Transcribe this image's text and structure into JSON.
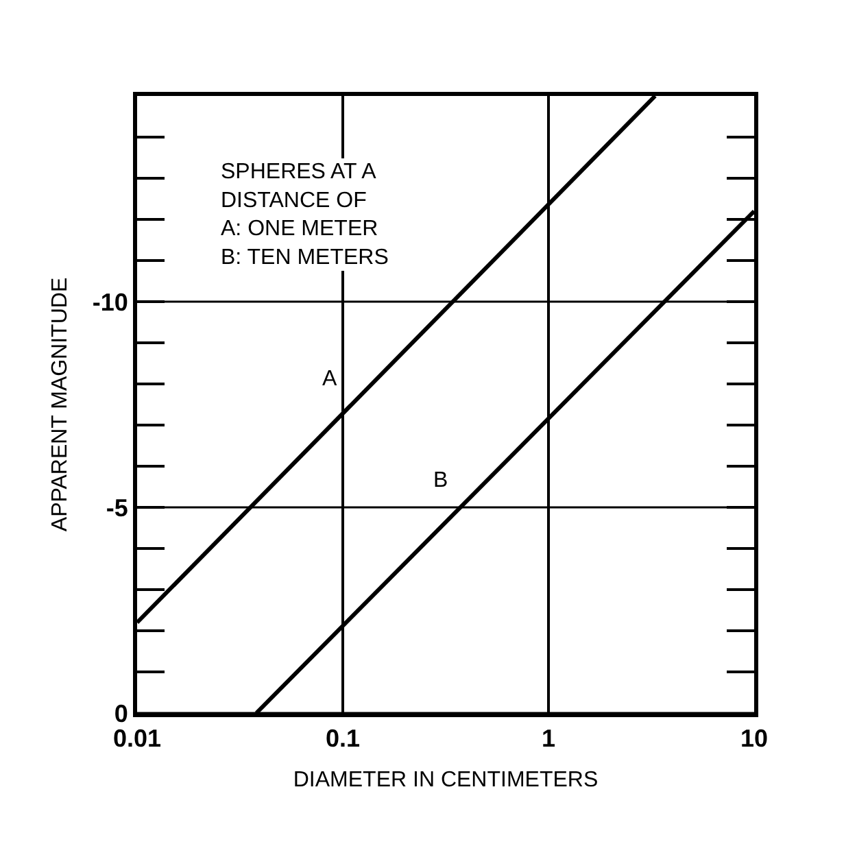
{
  "chart_data": {
    "type": "line",
    "xlabel": "DIAMETER IN CENTIMETERS",
    "ylabel": "APPARENT MAGNITUDE",
    "annotations": [
      "SPHERES AT A\nDISTANCE OF\nA: ONE METER\nB: TEN METERS"
    ],
    "series": [
      {
        "name": "A",
        "color": "#000000",
        "x": [
          0.01,
          3.3
        ],
        "values": [
          -2.2,
          -15
        ]
      },
      {
        "name": "B",
        "color": "#000000",
        "x": [
          0.038,
          10
        ],
        "values": [
          0,
          -12.2
        ]
      }
    ],
    "log": "x",
    "xlim": [
      0.01,
      10
    ],
    "xticks": [
      0.01,
      0.1,
      1,
      10
    ],
    "ylim": [
      0,
      -15
    ],
    "yticks": [
      0,
      -5,
      -10
    ],
    "grid": true,
    "legend": false,
    "marker": "none",
    "line_style": "solid"
  }
}
